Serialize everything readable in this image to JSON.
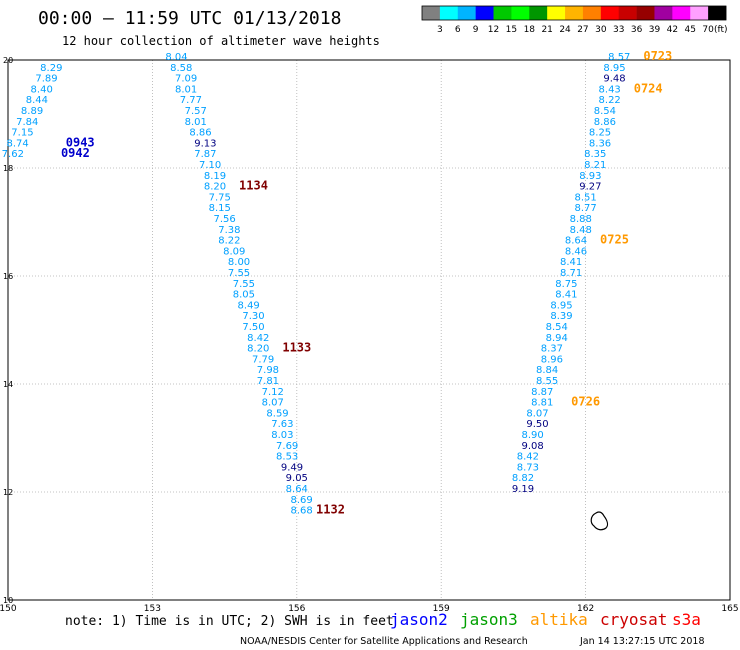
{
  "chart_data": {
    "type": "scatter",
    "title": "00:00 – 11:59 UTC 01/13/2018",
    "subtitle": "12 hour collection of altimeter wave heights",
    "xlim": [
      150,
      165
    ],
    "ylim": [
      10,
      20
    ],
    "x_ticks": [
      150,
      153,
      156,
      159,
      162,
      165
    ],
    "y_ticks": [
      10,
      12,
      14,
      16,
      18,
      20
    ],
    "colorbar": {
      "unit": "(ft)",
      "labels": [
        "3",
        "6",
        "9",
        "12",
        "15",
        "18",
        "21",
        "24",
        "27",
        "30",
        "33",
        "36",
        "39",
        "42",
        "45",
        "70"
      ],
      "colors": [
        "#808080",
        "#00ffff",
        "#00b4ff",
        "#0000ff",
        "#00c800",
        "#00ff00",
        "#009600",
        "#ffff00",
        "#ffb400",
        "#ff8000",
        "#ff0000",
        "#c80000",
        "#960000",
        "#a000a0",
        "#ff00ff",
        "#ffa0ff",
        "#000000"
      ]
    },
    "series": [
      {
        "name": "jason2",
        "points": [
          {
            "x": 150.9,
            "y": 19.8,
            "v": "8.29"
          },
          {
            "x": 150.8,
            "y": 19.6,
            "v": "7.89"
          },
          {
            "x": 150.7,
            "y": 19.4,
            "v": "8.40"
          },
          {
            "x": 150.6,
            "y": 19.2,
            "v": "8.44"
          },
          {
            "x": 150.5,
            "y": 19.0,
            "v": "8.89"
          },
          {
            "x": 150.4,
            "y": 18.8,
            "v": "7.84"
          },
          {
            "x": 150.3,
            "y": 18.6,
            "v": "7.15"
          },
          {
            "x": 150.2,
            "y": 18.4,
            "v": "8.74"
          },
          {
            "x": 150.1,
            "y": 18.2,
            "v": "7.62"
          }
        ]
      },
      {
        "name": "cryosat",
        "points": [
          {
            "x": 153.5,
            "y": 20.0,
            "v": "8.04"
          },
          {
            "x": 153.6,
            "y": 19.8,
            "v": "8.58"
          },
          {
            "x": 153.7,
            "y": 19.6,
            "v": "7.09"
          },
          {
            "x": 153.7,
            "y": 19.4,
            "v": "8.01"
          },
          {
            "x": 153.8,
            "y": 19.2,
            "v": "7.77"
          },
          {
            "x": 153.9,
            "y": 19.0,
            "v": "7.57"
          },
          {
            "x": 153.9,
            "y": 18.8,
            "v": "8.01"
          },
          {
            "x": 154.0,
            "y": 18.6,
            "v": "8.86"
          },
          {
            "x": 154.1,
            "y": 18.4,
            "v": "9.13"
          },
          {
            "x": 154.1,
            "y": 18.2,
            "v": "7.87"
          },
          {
            "x": 154.2,
            "y": 18.0,
            "v": "7.10"
          },
          {
            "x": 154.3,
            "y": 17.8,
            "v": "8.19"
          },
          {
            "x": 154.3,
            "y": 17.6,
            "v": "8.20"
          },
          {
            "x": 154.4,
            "y": 17.4,
            "v": "7.75"
          },
          {
            "x": 154.4,
            "y": 17.2,
            "v": "8.15"
          },
          {
            "x": 154.5,
            "y": 17.0,
            "v": "7.56"
          },
          {
            "x": 154.6,
            "y": 16.8,
            "v": "7.38"
          },
          {
            "x": 154.6,
            "y": 16.6,
            "v": "8.22"
          },
          {
            "x": 154.7,
            "y": 16.4,
            "v": "8.09"
          },
          {
            "x": 154.8,
            "y": 16.2,
            "v": "8.00"
          },
          {
            "x": 154.8,
            "y": 16.0,
            "v": "7.55"
          },
          {
            "x": 154.9,
            "y": 15.8,
            "v": "7.55"
          },
          {
            "x": 154.9,
            "y": 15.6,
            "v": "8.05"
          },
          {
            "x": 155.0,
            "y": 15.4,
            "v": "8.49"
          },
          {
            "x": 155.1,
            "y": 15.2,
            "v": "7.30"
          },
          {
            "x": 155.1,
            "y": 15.0,
            "v": "7.50"
          },
          {
            "x": 155.2,
            "y": 14.8,
            "v": "8.42"
          },
          {
            "x": 155.2,
            "y": 14.6,
            "v": "8.20"
          },
          {
            "x": 155.3,
            "y": 14.4,
            "v": "7.79"
          },
          {
            "x": 155.4,
            "y": 14.2,
            "v": "7.98"
          },
          {
            "x": 155.4,
            "y": 14.0,
            "v": "7.81"
          },
          {
            "x": 155.5,
            "y": 13.8,
            "v": "7.12"
          },
          {
            "x": 155.5,
            "y": 13.6,
            "v": "8.07"
          },
          {
            "x": 155.6,
            "y": 13.4,
            "v": "8.59"
          },
          {
            "x": 155.7,
            "y": 13.2,
            "v": "7.63"
          },
          {
            "x": 155.7,
            "y": 13.0,
            "v": "8.03"
          },
          {
            "x": 155.8,
            "y": 12.8,
            "v": "7.69"
          },
          {
            "x": 155.8,
            "y": 12.6,
            "v": "8.53"
          },
          {
            "x": 155.9,
            "y": 12.4,
            "v": "9.49"
          },
          {
            "x": 156.0,
            "y": 12.2,
            "v": "9.05"
          },
          {
            "x": 156.0,
            "y": 12.0,
            "v": "8.64"
          },
          {
            "x": 156.1,
            "y": 11.8,
            "v": "8.69"
          },
          {
            "x": 156.1,
            "y": 11.6,
            "v": "8.68"
          }
        ]
      },
      {
        "name": "altika",
        "points": [
          {
            "x": 162.7,
            "y": 20.0,
            "v": "8.57"
          },
          {
            "x": 162.6,
            "y": 19.8,
            "v": "8.95"
          },
          {
            "x": 162.6,
            "y": 19.6,
            "v": "9.48"
          },
          {
            "x": 162.5,
            "y": 19.4,
            "v": "8.43"
          },
          {
            "x": 162.5,
            "y": 19.2,
            "v": "8.22"
          },
          {
            "x": 162.4,
            "y": 19.0,
            "v": "8.54"
          },
          {
            "x": 162.4,
            "y": 18.8,
            "v": "8.86"
          },
          {
            "x": 162.3,
            "y": 18.6,
            "v": "8.25"
          },
          {
            "x": 162.3,
            "y": 18.4,
            "v": "8.36"
          },
          {
            "x": 162.2,
            "y": 18.2,
            "v": "8.35"
          },
          {
            "x": 162.2,
            "y": 18.0,
            "v": "8.21"
          },
          {
            "x": 162.1,
            "y": 17.8,
            "v": "8.93"
          },
          {
            "x": 162.1,
            "y": 17.6,
            "v": "9.27"
          },
          {
            "x": 162.0,
            "y": 17.4,
            "v": "8.51"
          },
          {
            "x": 162.0,
            "y": 17.2,
            "v": "8.77"
          },
          {
            "x": 161.9,
            "y": 17.0,
            "v": "8.88"
          },
          {
            "x": 161.9,
            "y": 16.8,
            "v": "8.48"
          },
          {
            "x": 161.8,
            "y": 16.6,
            "v": "8.64"
          },
          {
            "x": 161.8,
            "y": 16.4,
            "v": "8.46"
          },
          {
            "x": 161.7,
            "y": 16.2,
            "v": "8.41"
          },
          {
            "x": 161.7,
            "y": 16.0,
            "v": "8.71"
          },
          {
            "x": 161.6,
            "y": 15.8,
            "v": "8.75"
          },
          {
            "x": 161.6,
            "y": 15.6,
            "v": "8.41"
          },
          {
            "x": 161.5,
            "y": 15.4,
            "v": "8.95"
          },
          {
            "x": 161.5,
            "y": 15.2,
            "v": "8.39"
          },
          {
            "x": 161.4,
            "y": 15.0,
            "v": "8.54"
          },
          {
            "x": 161.4,
            "y": 14.8,
            "v": "8.94"
          },
          {
            "x": 161.3,
            "y": 14.6,
            "v": "8.37"
          },
          {
            "x": 161.3,
            "y": 14.4,
            "v": "8.96"
          },
          {
            "x": 161.2,
            "y": 14.2,
            "v": "8.84"
          },
          {
            "x": 161.2,
            "y": 14.0,
            "v": "8.55"
          },
          {
            "x": 161.1,
            "y": 13.8,
            "v": "8.87"
          },
          {
            "x": 161.1,
            "y": 13.6,
            "v": "8.81"
          },
          {
            "x": 161.0,
            "y": 13.4,
            "v": "8.07"
          },
          {
            "x": 161.0,
            "y": 13.2,
            "v": "9.50"
          },
          {
            "x": 160.9,
            "y": 13.0,
            "v": "8.90"
          },
          {
            "x": 160.9,
            "y": 12.8,
            "v": "9.08"
          },
          {
            "x": 160.8,
            "y": 12.6,
            "v": "8.42"
          },
          {
            "x": 160.8,
            "y": 12.4,
            "v": "8.73"
          },
          {
            "x": 160.7,
            "y": 12.2,
            "v": "8.82"
          },
          {
            "x": 160.7,
            "y": 12.0,
            "v": "9.19"
          }
        ]
      }
    ],
    "time_labels": [
      {
        "x": 151.2,
        "y": 18.4,
        "text": "0943",
        "satellite": "jason2"
      },
      {
        "x": 151.1,
        "y": 18.2,
        "text": "0942",
        "satellite": "jason2"
      },
      {
        "x": 154.8,
        "y": 17.6,
        "text": "1134",
        "satellite": "cryosat"
      },
      {
        "x": 155.7,
        "y": 14.6,
        "text": "1133",
        "satellite": "cryosat"
      },
      {
        "x": 156.4,
        "y": 11.6,
        "text": "1132",
        "satellite": "cryosat"
      },
      {
        "x": 163.2,
        "y": 20.0,
        "text": "0723",
        "satellite": "altika"
      },
      {
        "x": 163.0,
        "y": 19.4,
        "text": "0724",
        "satellite": "altika"
      },
      {
        "x": 162.3,
        "y": 16.6,
        "text": "0725",
        "satellite": "altika"
      },
      {
        "x": 161.7,
        "y": 13.6,
        "text": "0726",
        "satellite": "altika"
      }
    ],
    "legend": {
      "note": "note: 1) Time is in UTC; 2) SWH is in feet",
      "satellites": [
        {
          "name": "jason2",
          "color": "#0000ff"
        },
        {
          "name": "jason3",
          "color": "#00a000"
        },
        {
          "name": "altika",
          "color": "#ff9900"
        },
        {
          "name": "cryosat",
          "color": "#cc0000"
        },
        {
          "name": "s3a",
          "color": "#ff0000"
        }
      ]
    },
    "footer_left": "NOAA/NESDIS Center for Satellite Applications and Research",
    "footer_right": "Jan 14 13:27:15 UTC 2018",
    "grid": true
  },
  "styles": {
    "value_color": "#00a0ff",
    "value_high_color": "#000080",
    "jason2_time_color": "#0000cc",
    "cryosat_time_color": "#800000",
    "altika_time_color": "#ff9900",
    "grid_color": "#b0b0b0",
    "line_color": "#000000"
  }
}
